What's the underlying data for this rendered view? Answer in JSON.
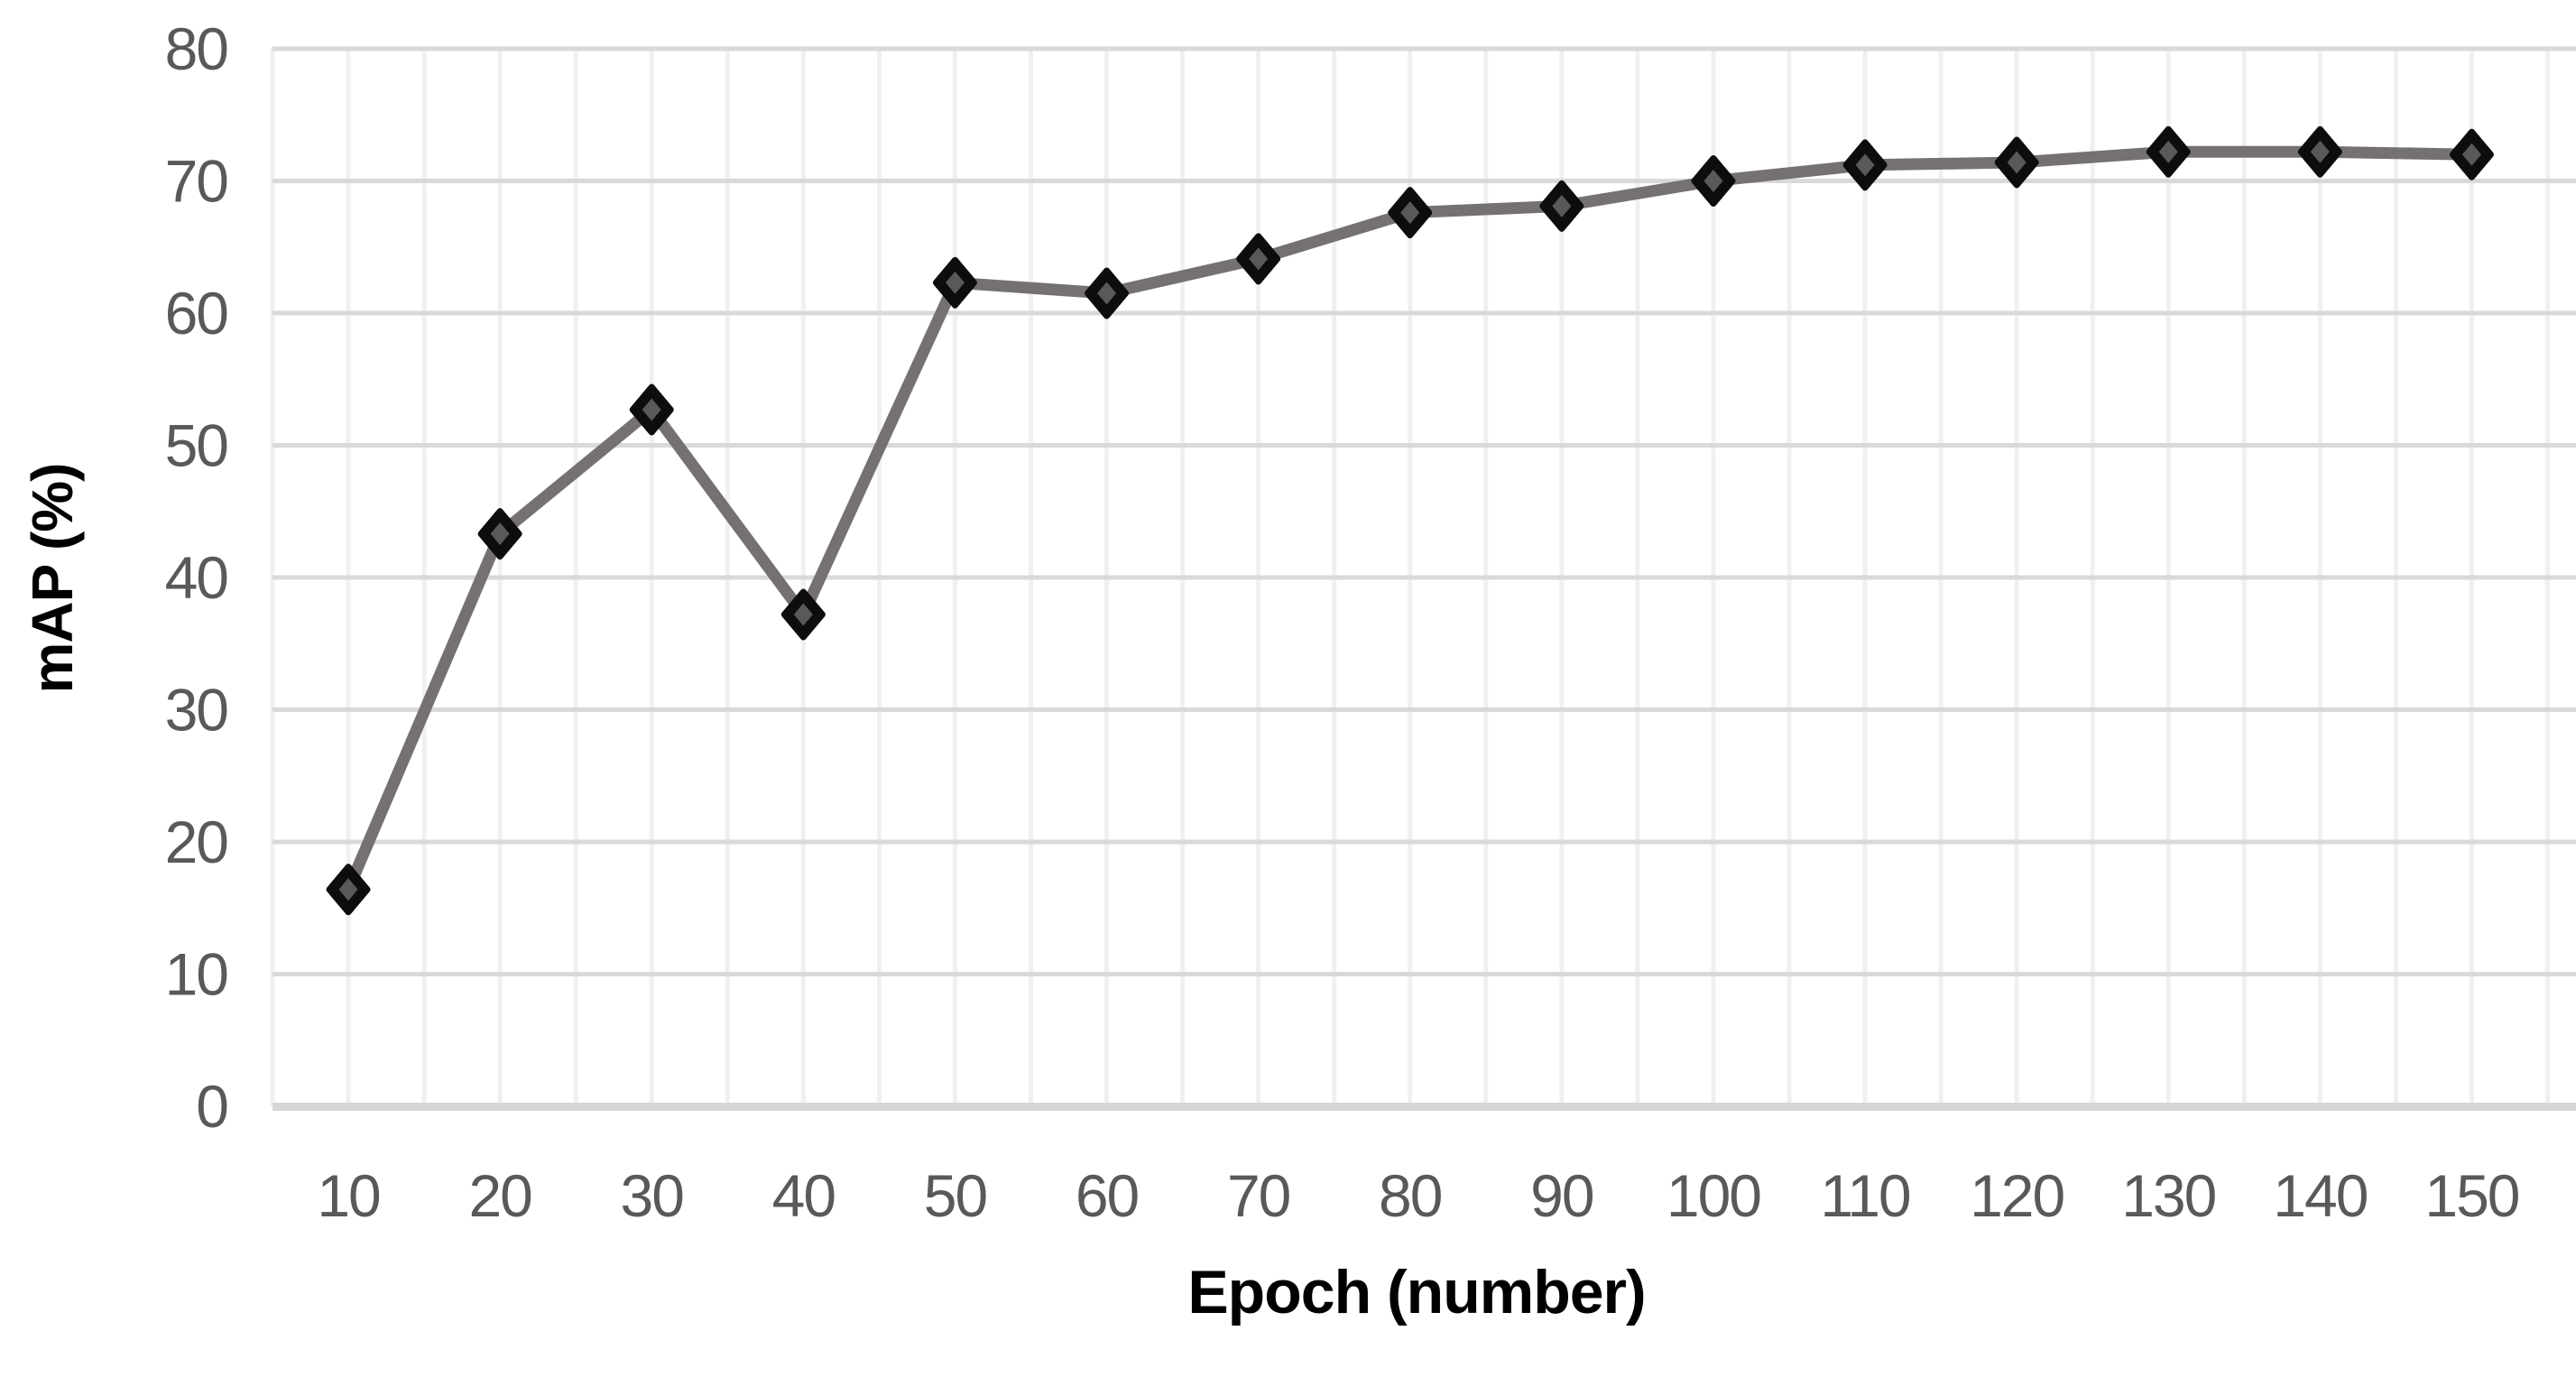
{
  "chart_data": {
    "type": "line",
    "title": "",
    "xlabel": "Epoch (number)",
    "ylabel": "mAP (%)",
    "x": [
      10,
      20,
      30,
      40,
      50,
      60,
      70,
      80,
      90,
      100,
      110,
      120,
      130,
      140,
      150
    ],
    "series": [
      {
        "name": "mAP",
        "values": [
          16.4,
          43.3,
          52.7,
          37.2,
          62.3,
          61.5,
          64.1,
          67.6,
          68.1,
          70.0,
          71.2,
          71.4,
          72.2,
          72.2,
          72.0
        ]
      }
    ],
    "ylim": [
      0,
      80
    ],
    "yticks": [
      0,
      10,
      20,
      30,
      40,
      50,
      60,
      70,
      80
    ],
    "xtick_labels": [
      "10",
      "20",
      "30",
      "40",
      "50",
      "60",
      "70",
      "80",
      "90",
      "100",
      "110",
      "120",
      "130",
      "140",
      "150"
    ],
    "grid": true,
    "legend_position": "none",
    "marker": "diamond",
    "colors": {
      "line": "#767171",
      "marker_fill": "#595959",
      "marker_border": "#0d0d0d",
      "h_gridline": "#d9d9d9",
      "v_gridline": "#f0f0f0",
      "axis_line": "#d6d6d6",
      "tick_label": "#595959",
      "axis_title": "#000000",
      "background": "#ffffff"
    }
  }
}
